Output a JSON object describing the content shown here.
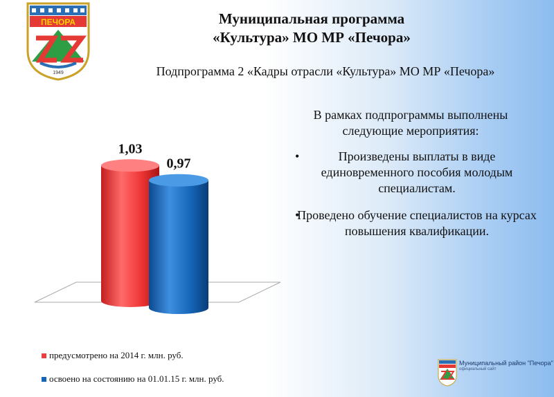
{
  "emblem": {
    "top_text": "ПЕЧОРА",
    "year": "1949"
  },
  "header": {
    "title_line1": "Муниципальная программа",
    "title_line2": "«Культура» МО МР «Печора»",
    "subtitle": "Подпрограмма 2 «Кадры отрасли «Культура» МО МР «Печора»"
  },
  "chart_data": {
    "type": "bar",
    "series": [
      {
        "name": "предусмотрено на 2014 г. млн. руб.",
        "values": [
          1.03
        ],
        "color": "#ef3b3b"
      },
      {
        "name": "освоено на состоянию на 01.01.15 г. млн. руб.",
        "values": [
          0.97
        ],
        "color": "#1565b8"
      }
    ],
    "data_labels": [
      "1,03",
      "0,97"
    ],
    "ylim": [
      0,
      1.2
    ]
  },
  "text_block": {
    "intro": "В рамках подпрограммы выполнены следующие мероприятия:",
    "bullet_symbol": "•",
    "items": [
      "Произведены выплаты в виде единовременного пособия молодым специалистам.",
      "Проведено обучение  специалистов на курсах повышения квалификации."
    ]
  },
  "legend": {
    "items": [
      {
        "label": "предусмотрено на 2014 г. млн. руб.",
        "color": "#ef3b3b"
      },
      {
        "label": "освоено на состоянию на 01.01.15 г. млн. руб.",
        "color": "#1565b8"
      }
    ]
  },
  "footer": {
    "title": "Муниципальный район \"Печора\"",
    "subtitle": "официальный сайт"
  }
}
